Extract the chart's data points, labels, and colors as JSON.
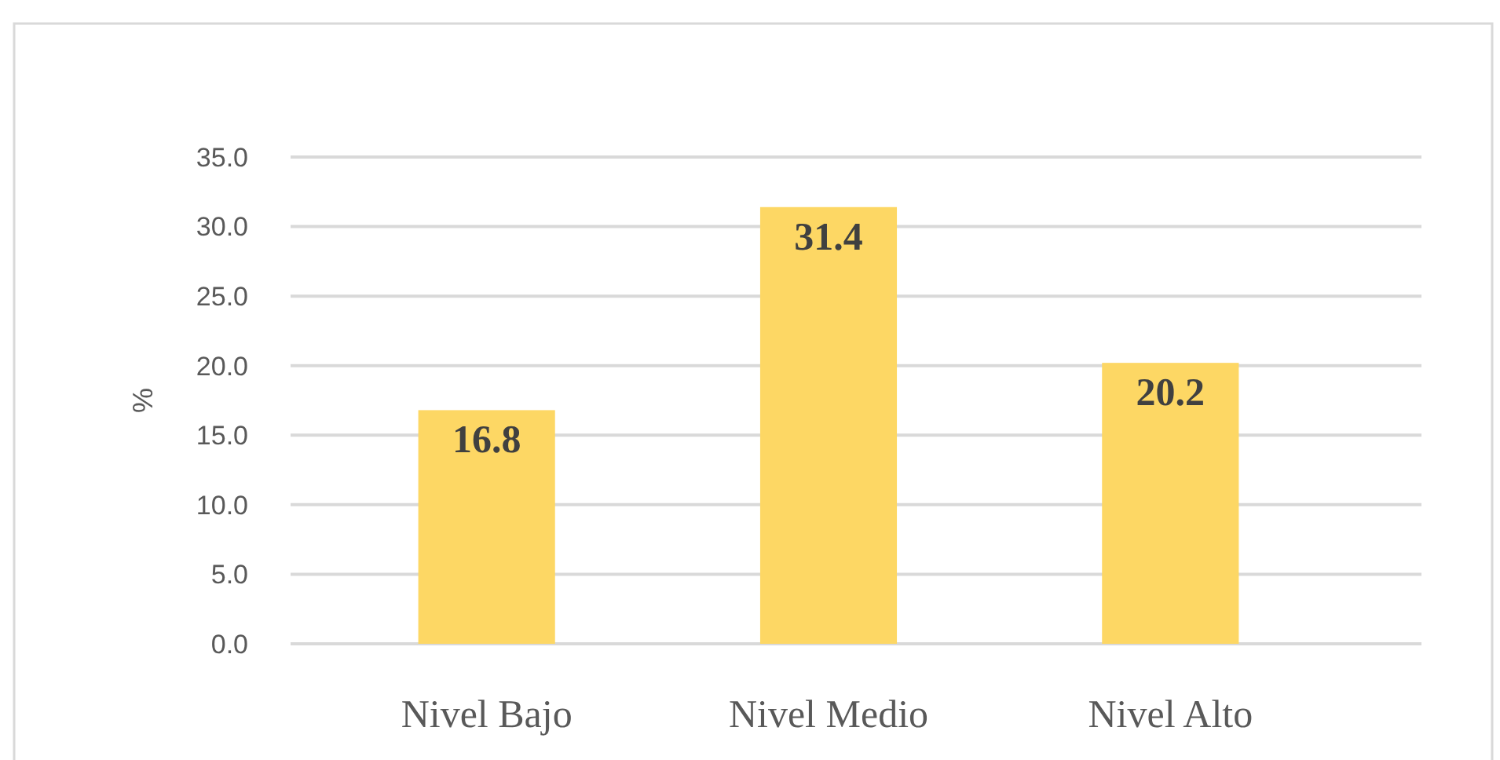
{
  "chart_data": {
    "type": "bar",
    "ylabel": "%",
    "categories": [
      "Nivel Bajo",
      "Nivel Medio",
      "Nivel Alto"
    ],
    "values": [
      16.8,
      31.4,
      20.2
    ],
    "color": "#fdd764",
    "ylim": [
      0,
      35
    ],
    "yticks": [
      {
        "value": 0,
        "label": "0.0"
      },
      {
        "value": 5,
        "label": "5.0"
      },
      {
        "value": 10,
        "label": "10.0"
      },
      {
        "value": 15,
        "label": "15.0"
      },
      {
        "value": 20,
        "label": "20.0"
      },
      {
        "value": 25,
        "label": "25.0"
      },
      {
        "value": 30,
        "label": "30.0"
      },
      {
        "value": 35,
        "label": "35.0"
      }
    ],
    "grid": "y",
    "data_labels": true
  }
}
